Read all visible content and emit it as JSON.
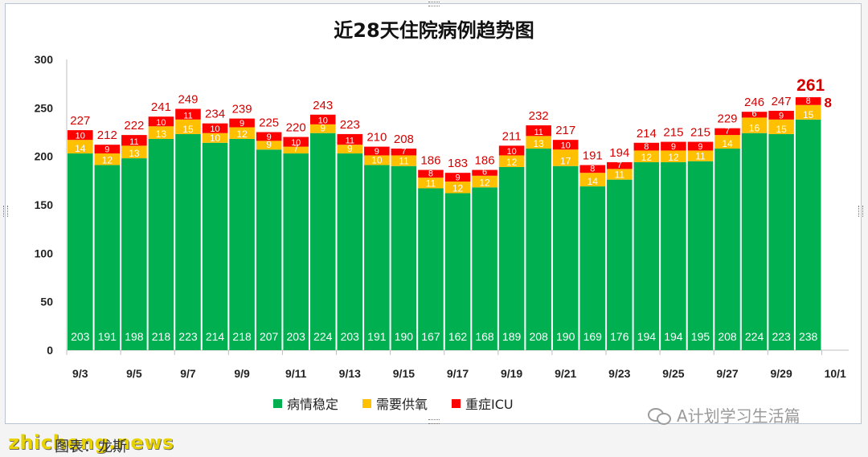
{
  "title": "近28天住院病例趋势图",
  "chart_data": {
    "type": "bar",
    "stacked": true,
    "title": "近28天住院病例趋势图",
    "ylim": [
      0,
      300
    ],
    "yticks": [
      0,
      50,
      100,
      150,
      200,
      250,
      300
    ],
    "xtick_labels": [
      "9/3",
      "9/5",
      "9/7",
      "9/9",
      "9/11",
      "9/13",
      "9/15",
      "9/17",
      "9/19",
      "9/21",
      "9/23",
      "9/25",
      "9/27",
      "9/29",
      "10/1"
    ],
    "categories": [
      "9/3",
      "9/4",
      "9/5",
      "9/6",
      "9/7",
      "9/8",
      "9/9",
      "9/10",
      "9/11",
      "9/12",
      "9/13",
      "9/14",
      "9/15",
      "9/16",
      "9/17",
      "9/18",
      "9/19",
      "9/20",
      "9/21",
      "9/22",
      "9/23",
      "9/24",
      "9/25",
      "9/26",
      "9/27",
      "9/28",
      "9/29",
      "9/30",
      "10/1"
    ],
    "series": [
      {
        "name": "病情稳定",
        "color": "#00b050",
        "values": [
          203,
          191,
          198,
          218,
          223,
          214,
          218,
          207,
          203,
          224,
          203,
          191,
          190,
          167,
          162,
          168,
          189,
          208,
          190,
          169,
          176,
          194,
          194,
          195,
          208,
          224,
          223,
          238,
          null
        ]
      },
      {
        "name": "需要供氧",
        "color": "#ffc000",
        "values": [
          14,
          12,
          13,
          13,
          15,
          10,
          12,
          9,
          7,
          9,
          9,
          10,
          11,
          11,
          12,
          12,
          12,
          13,
          17,
          14,
          11,
          12,
          12,
          11,
          14,
          16,
          15,
          15,
          null
        ]
      },
      {
        "name": "重症ICU",
        "color": "#ff0000",
        "values": [
          10,
          9,
          11,
          10,
          11,
          10,
          9,
          9,
          10,
          10,
          11,
          9,
          7,
          8,
          9,
          6,
          10,
          11,
          10,
          8,
          7,
          8,
          9,
          9,
          7,
          6,
          9,
          8,
          null
        ]
      }
    ],
    "totals": [
      227,
      212,
      222,
      241,
      249,
      234,
      239,
      225,
      220,
      243,
      223,
      210,
      208,
      186,
      183,
      186,
      211,
      232,
      217,
      191,
      194,
      214,
      215,
      215,
      229,
      246,
      247,
      261,
      null
    ],
    "highlight_last_total": true,
    "grid": false,
    "legend_position": "bottom"
  },
  "legend": {
    "stable": "病情稳定",
    "oxygen": "需要供氧",
    "icu": "重症ICU"
  },
  "colors": {
    "stable": "#00b050",
    "oxygen": "#ffc000",
    "icu": "#ff0000",
    "total_label": "#d40000"
  },
  "watermark": {
    "text": "A计划学习生活篇",
    "icon": "wechat-icon"
  },
  "site_mark": "zhicheng.news",
  "caption": "图表：龙斯"
}
